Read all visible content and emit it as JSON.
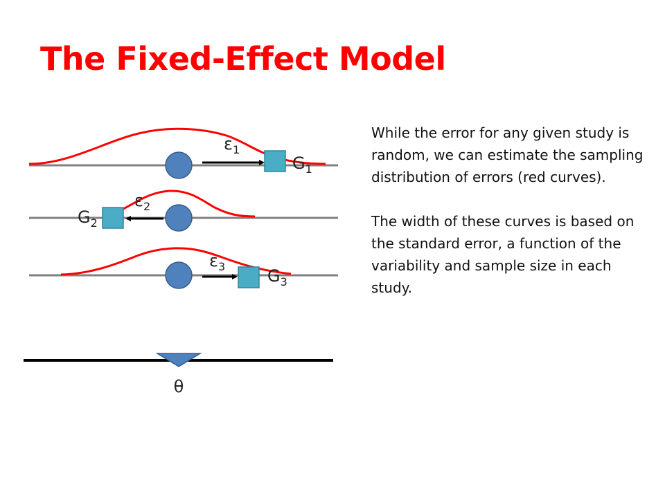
{
  "slide": {
    "title": "The Fixed-Effect Model",
    "paragraphs": [
      "While the error for any given study is random, we can estimate the sampling distribution of errors (red curves).",
      "The width of these curves is based on the standard error, a function of the variability and sample size in each study."
    ]
  },
  "diagram": {
    "studies": [
      {
        "effect_symbol": "G",
        "effect_subscript": "1",
        "error_symbol": "ε",
        "error_subscript": "1",
        "error_direction": "right"
      },
      {
        "effect_symbol": "G",
        "effect_subscript": "2",
        "error_symbol": "ε",
        "error_subscript": "2",
        "error_direction": "left"
      },
      {
        "effect_symbol": "G",
        "effect_subscript": "3",
        "error_symbol": "ε",
        "error_subscript": "3",
        "error_direction": "right"
      }
    ],
    "true_effect_symbol": "θ",
    "colors": {
      "curve": "#ff0000",
      "baseline": "#808080",
      "true_effect_circle": "#4f81bd",
      "study_square": "#4bacc6",
      "axis": "#000000",
      "title": "#ff0000"
    }
  }
}
